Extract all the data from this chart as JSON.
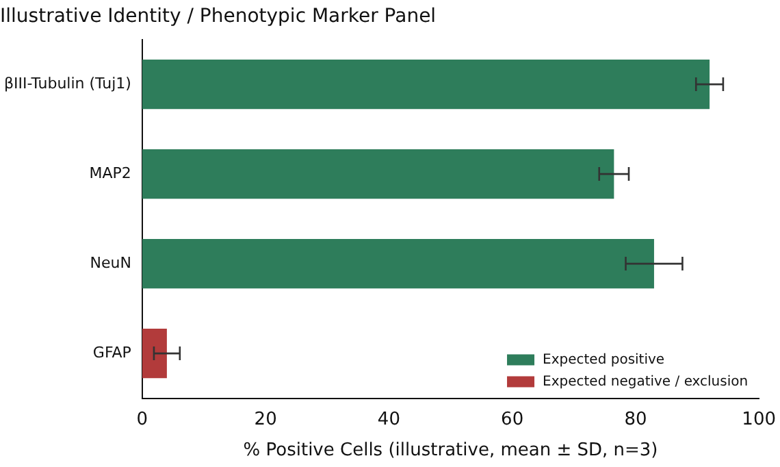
{
  "chart_data": {
    "type": "bar",
    "orientation": "horizontal",
    "stacked": true,
    "title": "Illustrative Identity / Phenotypic Marker Panel",
    "xlabel": "% Positive Cells (illustrative, mean ± SD, n=3)",
    "categories": [
      "βIII-Tubulin (Tuj1)",
      "MAP2",
      "NeuN",
      "GFAP"
    ],
    "series": [
      {
        "name": "Expected positive",
        "color": "#2e7d5b",
        "values": [
          92,
          76.5,
          83,
          null
        ],
        "errors": [
          2.2,
          2.4,
          4.6,
          null
        ]
      },
      {
        "name": "Expected negative / exclusion",
        "color": "#b23b3b",
        "values": [
          null,
          null,
          null,
          4
        ],
        "errors": [
          null,
          null,
          null,
          2.1
        ]
      }
    ],
    "xlim": [
      0,
      100
    ],
    "xticks": [
      0,
      20,
      40,
      60,
      80,
      100
    ],
    "grid": false,
    "legend": "bottom right"
  }
}
